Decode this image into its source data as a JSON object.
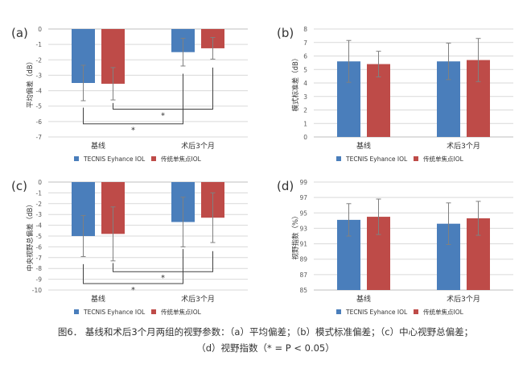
{
  "chart_data": [
    {
      "panel_label": "(a)",
      "type": "bar",
      "ylabel": "平均偏差（dB）",
      "ylim": [
        -7,
        0
      ],
      "yticks": [
        0,
        -1,
        -2,
        -3,
        -4,
        -5,
        -6,
        -7
      ],
      "categories": [
        "基线",
        "术后3个月"
      ],
      "series": [
        {
          "name": "TECNIS Eyhance IOL",
          "values": [
            -3.5,
            -1.5
          ],
          "err": [
            1.15,
            0.9
          ],
          "color": "#4a7ebb"
        },
        {
          "name": "传统单焦点IOL",
          "values": [
            -3.55,
            -1.25
          ],
          "err": [
            1.05,
            0.7
          ],
          "color": "#be4b48"
        }
      ],
      "tick_labels_top": true,
      "grid": true,
      "annotations": [
        {
          "text": "*",
          "kind": "bracket",
          "from": [
            0,
            1
          ],
          "to": [
            1,
            1
          ],
          "level": -5.2,
          "y_from": -4.8,
          "y_to": -2.5
        },
        {
          "text": "*",
          "kind": "bracket",
          "from": [
            0,
            0
          ],
          "to": [
            1,
            0
          ],
          "level": -6.15,
          "y_from": -5.1,
          "y_to": -2.9
        }
      ]
    },
    {
      "panel_label": "(b)",
      "type": "bar",
      "ylabel": "模式标准差（dB）",
      "ylim": [
        0,
        8
      ],
      "yticks": [
        0,
        1,
        2,
        3,
        4,
        5,
        6,
        7,
        8
      ],
      "categories": [
        "基线",
        "术后3个月"
      ],
      "series": [
        {
          "name": "TECNIS Eyhance IOL",
          "values": [
            5.6,
            5.6
          ],
          "err": [
            1.55,
            1.35
          ],
          "color": "#4a7ebb"
        },
        {
          "name": "传统单焦点IOL",
          "values": [
            5.4,
            5.7
          ],
          "err": [
            0.95,
            1.6
          ],
          "color": "#be4b48"
        }
      ],
      "tick_labels_top": false,
      "grid": true,
      "annotations": []
    },
    {
      "panel_label": "(c)",
      "type": "bar",
      "ylabel": "中央视野总偏差（dB）",
      "ylim": [
        -10,
        0
      ],
      "yticks": [
        0,
        -1,
        -2,
        -3,
        -4,
        -5,
        -6,
        -7,
        -8,
        -9,
        -10
      ],
      "categories": [
        "基线",
        "术后3个月"
      ],
      "series": [
        {
          "name": "TECNIS Eyhance IOL",
          "values": [
            -5.0,
            -3.7
          ],
          "err": [
            1.9,
            2.3
          ],
          "color": "#4a7ebb"
        },
        {
          "name": "传统单焦点IOL",
          "values": [
            -4.8,
            -3.3
          ],
          "err": [
            2.5,
            2.3
          ],
          "color": "#be4b48"
        }
      ],
      "tick_labels_top": true,
      "grid": true,
      "annotations": [
        {
          "text": "*",
          "kind": "bracket",
          "from": [
            0,
            1
          ],
          "to": [
            1,
            1
          ],
          "level": -8.3,
          "y_from": -7.5,
          "y_to": -6.4
        },
        {
          "text": "*",
          "kind": "bracket",
          "from": [
            0,
            0
          ],
          "to": [
            1,
            0
          ],
          "level": -9.4,
          "y_from": -7.6,
          "y_to": -6.2
        }
      ]
    },
    {
      "panel_label": "(d)",
      "type": "bar",
      "ylabel": "视野指数（%）",
      "ylim": [
        85,
        99
      ],
      "yticks": [
        85,
        87,
        89,
        91,
        93,
        95,
        97,
        99
      ],
      "categories": [
        "基线",
        "术后3个月"
      ],
      "series": [
        {
          "name": "TECNIS Eyhance IOL",
          "values": [
            94.1,
            93.6
          ],
          "err": [
            2.1,
            2.7
          ],
          "color": "#4a7ebb"
        },
        {
          "name": "传统单焦点IOL",
          "values": [
            94.5,
            94.3
          ],
          "err": [
            2.3,
            2.2
          ],
          "color": "#be4b48"
        }
      ],
      "tick_labels_top": false,
      "grid": true,
      "annotations": []
    }
  ],
  "legend": {
    "items": [
      {
        "label": "TECNIS Eyhance IOL",
        "color": "#4a7ebb"
      },
      {
        "label": "传统单焦点IOL",
        "color": "#be4b48"
      }
    ],
    "placement": "bottom-center"
  },
  "caption": {
    "line1": "图6． 基线和术后3个月两组的视野参数：（a）平均偏差；（b）模式标准偏差；（c）中心视野总偏差；",
    "line2": "（d）视野指数（* = P < 0.05）"
  },
  "colors": {
    "axis": "#bfbfbf",
    "grid": "#d9d9d9",
    "text": "#333333",
    "error": "#808080"
  }
}
